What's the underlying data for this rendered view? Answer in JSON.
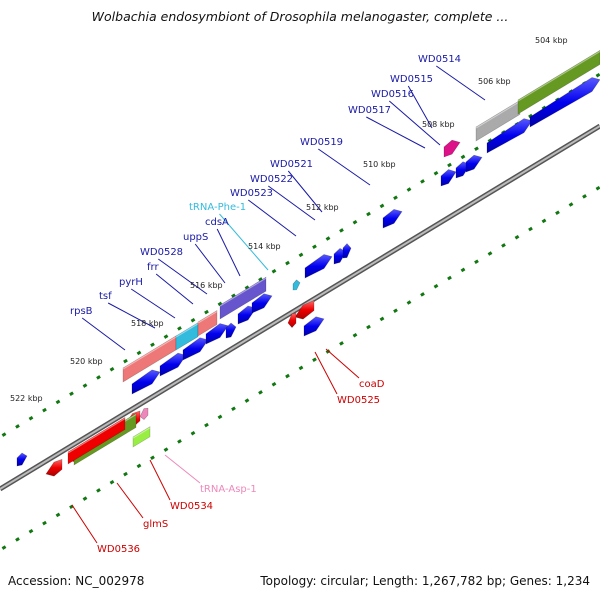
{
  "title": "Wolbachia endosymbiont of Drosophila melanogaster, complete ...",
  "accession": "Accession: NC_002978",
  "topology": "Topology: circular; Length: 1,267,782 bp; Genes: 1,234",
  "ticks": [
    {
      "kbp": 504,
      "label": "504 kbp"
    },
    {
      "kbp": 506,
      "label": "506 kbp"
    },
    {
      "kbp": 508,
      "label": "508 kbp"
    },
    {
      "kbp": 510,
      "label": "510 kbp"
    },
    {
      "kbp": 512,
      "label": "512 kbp"
    },
    {
      "kbp": 514,
      "label": "514 kbp"
    },
    {
      "kbp": 516,
      "label": "516 kbp"
    },
    {
      "kbp": 518,
      "label": "518 kbp"
    },
    {
      "kbp": 520,
      "label": "520 kbp"
    },
    {
      "kbp": 522,
      "label": "522 kbp"
    }
  ],
  "gene_labels": [
    {
      "id": "WD0514",
      "text": "WD0514",
      "strand": "forward",
      "color": "#1a1aa6"
    },
    {
      "id": "WD0515",
      "text": "WD0515",
      "strand": "forward",
      "color": "#1a1aa6"
    },
    {
      "id": "WD0516",
      "text": "WD0516",
      "strand": "forward",
      "color": "#1a1aa6"
    },
    {
      "id": "WD0517",
      "text": "WD0517",
      "strand": "forward",
      "color": "#1a1aa6"
    },
    {
      "id": "WD0519",
      "text": "WD0519",
      "strand": "forward",
      "color": "#1a1aa6"
    },
    {
      "id": "WD0521",
      "text": "WD0521",
      "strand": "forward",
      "color": "#1a1aa6"
    },
    {
      "id": "WD0522",
      "text": "WD0522",
      "strand": "forward",
      "color": "#1a1aa6"
    },
    {
      "id": "WD0523",
      "text": "WD0523",
      "strand": "forward",
      "color": "#1a1aa6"
    },
    {
      "id": "tRNA-Phe-1",
      "text": "tRNA-Phe-1",
      "strand": "forward",
      "color": "#33bbdd"
    },
    {
      "id": "cdsA",
      "text": "cdsA",
      "strand": "forward",
      "color": "#1a1aa6"
    },
    {
      "id": "uppS",
      "text": "uppS",
      "strand": "forward",
      "color": "#1a1aa6"
    },
    {
      "id": "WD0528",
      "text": "WD0528",
      "strand": "forward",
      "color": "#1a1aa6"
    },
    {
      "id": "frr",
      "text": "frr",
      "strand": "forward",
      "color": "#1a1aa6"
    },
    {
      "id": "pyrH",
      "text": "pyrH",
      "strand": "forward",
      "color": "#1a1aa6"
    },
    {
      "id": "tsf",
      "text": "tsf",
      "strand": "forward",
      "color": "#1a1aa6"
    },
    {
      "id": "rpsB",
      "text": "rpsB",
      "strand": "forward",
      "color": "#1a1aa6"
    },
    {
      "id": "coaD",
      "text": "coaD",
      "strand": "reverse",
      "color": "#cc0000"
    },
    {
      "id": "WD0525",
      "text": "WD0525",
      "strand": "reverse",
      "color": "#cc0000"
    },
    {
      "id": "tRNA-Asp-1",
      "text": "tRNA-Asp-1",
      "strand": "reverse",
      "color": "#ee88bb"
    },
    {
      "id": "WD0534",
      "text": "WD0534",
      "strand": "reverse",
      "color": "#cc0000"
    },
    {
      "id": "glmS",
      "text": "glmS",
      "strand": "reverse",
      "color": "#cc0000"
    },
    {
      "id": "WD0536",
      "text": "WD0536",
      "strand": "reverse",
      "color": "#cc0000"
    }
  ],
  "colors": {
    "backbone": "#777777",
    "forward_cds": "#0000ee",
    "reverse_cds": "#ee0000",
    "tick_green": "#117711",
    "rrna_pink": "#ee7777",
    "trna_cyan": "#33bbdd",
    "purple_feature": "#6655cc",
    "olive_feature": "#669922",
    "gray_feature": "#aaaaaa",
    "magenta_feature": "#dd1188",
    "lime_feature": "#99ee44"
  }
}
